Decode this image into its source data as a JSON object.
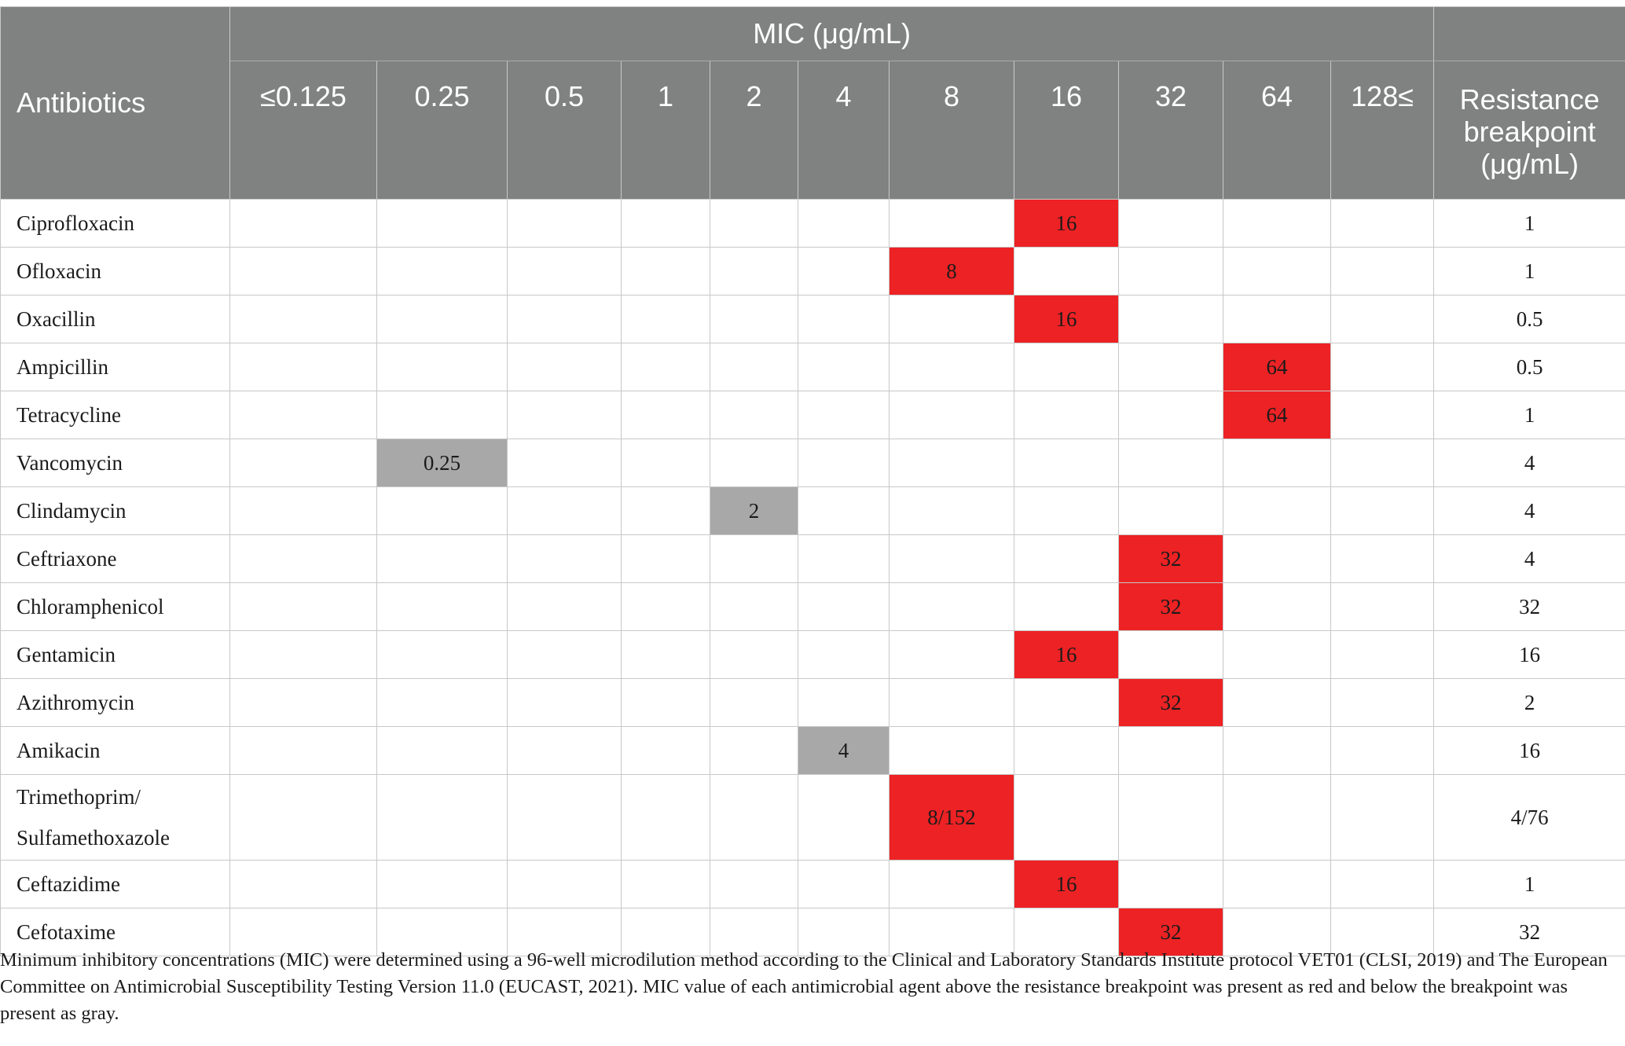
{
  "table": {
    "corner_label": "Antibiotics",
    "group_label": "MIC (μg/mL)",
    "concentrations": [
      "≤0.125",
      "0.25",
      "0.5",
      "1",
      "2",
      "4",
      "8",
      "16",
      "32",
      "64",
      "128≤"
    ],
    "breakpoint_label_lines": [
      "Resistance",
      "breakpoint",
      "(μg/mL)"
    ],
    "rows": [
      {
        "name_lines": [
          "Ciprofloxacin"
        ],
        "mic": "16",
        "mic_column": "16",
        "status": "red",
        "breakpoint": "1"
      },
      {
        "name_lines": [
          "Ofloxacin"
        ],
        "mic": "8",
        "mic_column": "8",
        "status": "red",
        "breakpoint": "1"
      },
      {
        "name_lines": [
          "Oxacillin"
        ],
        "mic": "16",
        "mic_column": "16",
        "status": "red",
        "breakpoint": "0.5"
      },
      {
        "name_lines": [
          "Ampicillin"
        ],
        "mic": "64",
        "mic_column": "64",
        "status": "red",
        "breakpoint": "0.5"
      },
      {
        "name_lines": [
          "Tetracycline"
        ],
        "mic": "64",
        "mic_column": "64",
        "status": "red",
        "breakpoint": "1"
      },
      {
        "name_lines": [
          "Vancomycin"
        ],
        "mic": "0.25",
        "mic_column": "0.25",
        "status": "gray",
        "breakpoint": "4"
      },
      {
        "name_lines": [
          "Clindamycin"
        ],
        "mic": "2",
        "mic_column": "2",
        "status": "gray",
        "breakpoint": "4"
      },
      {
        "name_lines": [
          "Ceftriaxone"
        ],
        "mic": "32",
        "mic_column": "32",
        "status": "red",
        "breakpoint": "4"
      },
      {
        "name_lines": [
          "Chloramphenicol"
        ],
        "mic": "32",
        "mic_column": "32",
        "status": "red",
        "breakpoint": "32"
      },
      {
        "name_lines": [
          "Gentamicin"
        ],
        "mic": "16",
        "mic_column": "16",
        "status": "red",
        "breakpoint": "16"
      },
      {
        "name_lines": [
          "Azithromycin"
        ],
        "mic": "32",
        "mic_column": "32",
        "status": "red",
        "breakpoint": "2"
      },
      {
        "name_lines": [
          "Amikacin"
        ],
        "mic": "4",
        "mic_column": "4",
        "status": "gray",
        "breakpoint": "16"
      },
      {
        "name_lines": [
          "Trimethoprim/",
          "Sulfamethoxazole"
        ],
        "mic": "8/152",
        "mic_column": "8",
        "status": "red",
        "breakpoint": "4/76"
      },
      {
        "name_lines": [
          "Ceftazidime"
        ],
        "mic": "16",
        "mic_column": "16",
        "status": "red",
        "breakpoint": "1"
      },
      {
        "name_lines": [
          "Cefotaxime"
        ],
        "mic": "32",
        "mic_column": "32",
        "status": "red",
        "breakpoint": "32"
      }
    ]
  },
  "colors": {
    "header_background": "#808281",
    "resistant": "#ed2224",
    "susceptible": "#a8a8a8",
    "grid": "#c8c8c8"
  },
  "footnote": "Minimum inhibitory concentrations (MIC) were determined using a 96-well microdilution method according to the Clinical and Laboratory Standards Institute protocol VET01 (CLSI, 2019) and The European Committee on Antimicrobial Susceptibility Testing Version 11.0 (EUCAST, 2021). MIC value of each antimicrobial agent above the resistance breakpoint was present as red and below the breakpoint was present as gray."
}
